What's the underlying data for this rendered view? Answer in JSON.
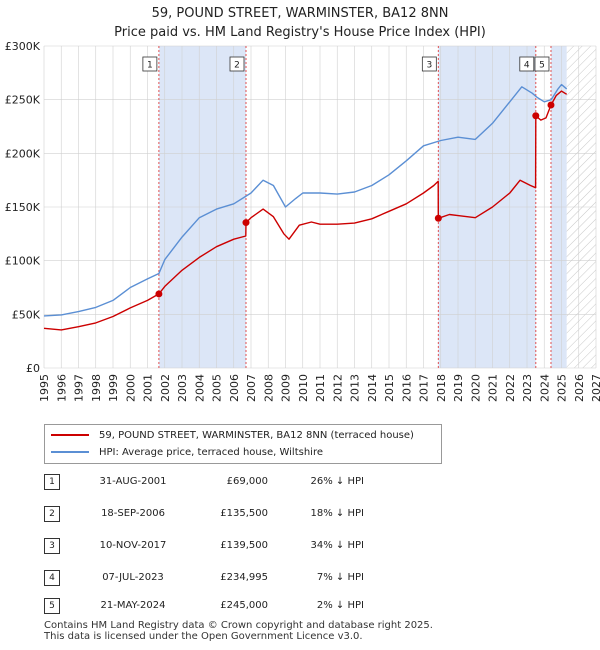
{
  "title": {
    "line1": "59, POUND STREET, WARMINSTER, BA12 8NN",
    "line2": "Price paid vs. HM Land Registry's House Price Index (HPI)"
  },
  "colors": {
    "property": "#cc0000",
    "hpi": "#5b8fd4",
    "shade": "#dce6f7",
    "grid": "#d0d0d0",
    "marker_line": "#e05050"
  },
  "chart_data": {
    "type": "line",
    "title": "Price paid vs. HM Land Registry's House Price Index (HPI)",
    "xlim": [
      1995,
      2027
    ],
    "ylim": [
      0,
      300000
    ],
    "x_ticks": [
      1995,
      1996,
      1997,
      1998,
      1999,
      2000,
      2001,
      2002,
      2003,
      2004,
      2005,
      2006,
      2007,
      2008,
      2009,
      2010,
      2011,
      2012,
      2013,
      2014,
      2015,
      2016,
      2017,
      2018,
      2019,
      2020,
      2021,
      2022,
      2023,
      2024,
      2025,
      2026,
      2027
    ],
    "y_ticks": [
      {
        "value": 0,
        "label": "£0"
      },
      {
        "value": 50000,
        "label": "£50K"
      },
      {
        "value": 100000,
        "label": "£100K"
      },
      {
        "value": 150000,
        "label": "£150K"
      },
      {
        "value": 200000,
        "label": "£200K"
      },
      {
        "value": 250000,
        "label": "£250K"
      },
      {
        "value": 300000,
        "label": "£300K"
      }
    ],
    "shaded_ranges": [
      [
        2001.66,
        2006.71
      ],
      [
        2017.86,
        2023.51
      ],
      [
        2024.39,
        2025.3
      ]
    ],
    "hatch_from": 2025.3,
    "series": [
      {
        "name": "59, POUND STREET, WARMINSTER, BA12 8NN (terraced house)",
        "color": "#cc0000",
        "points": [
          [
            1995,
            37000
          ],
          [
            1996,
            35500
          ],
          [
            1997,
            38500
          ],
          [
            1998,
            42000
          ],
          [
            1999,
            48000
          ],
          [
            2000,
            56000
          ],
          [
            2001,
            63000
          ],
          [
            2001.66,
            69000
          ],
          [
            2002,
            76000
          ],
          [
            2003,
            91000
          ],
          [
            2004,
            103000
          ],
          [
            2005,
            113000
          ],
          [
            2006,
            120000
          ],
          [
            2006.7,
            123000
          ],
          [
            2006.71,
            135500
          ],
          [
            2007,
            140000
          ],
          [
            2007.7,
            148000
          ],
          [
            2008.3,
            141000
          ],
          [
            2008.9,
            125000
          ],
          [
            2009.2,
            120000
          ],
          [
            2009.8,
            133000
          ],
          [
            2010.5,
            136000
          ],
          [
            2011,
            134000
          ],
          [
            2012,
            134000
          ],
          [
            2013,
            135000
          ],
          [
            2014,
            139000
          ],
          [
            2015,
            146000
          ],
          [
            2016,
            153000
          ],
          [
            2017,
            163000
          ],
          [
            2017.6,
            170000
          ],
          [
            2017.85,
            174000
          ],
          [
            2017.86,
            139500
          ],
          [
            2018.5,
            143000
          ],
          [
            2019,
            142000
          ],
          [
            2020,
            140000
          ],
          [
            2021,
            150000
          ],
          [
            2022,
            163000
          ],
          [
            2022.6,
            175000
          ],
          [
            2023.2,
            170000
          ],
          [
            2023.5,
            168000
          ],
          [
            2023.51,
            234995
          ],
          [
            2023.8,
            231000
          ],
          [
            2024.1,
            233000
          ],
          [
            2024.39,
            245000
          ],
          [
            2024.7,
            254000
          ],
          [
            2025,
            258000
          ],
          [
            2025.3,
            255000
          ]
        ]
      },
      {
        "name": "HPI: Average price, terraced house, Wiltshire",
        "color": "#5b8fd4",
        "points": [
          [
            1995,
            48500
          ],
          [
            1996,
            49500
          ],
          [
            1997,
            52500
          ],
          [
            1998,
            56500
          ],
          [
            1999,
            63000
          ],
          [
            2000,
            75000
          ],
          [
            2001,
            83000
          ],
          [
            2001.66,
            88000
          ],
          [
            2002,
            101000
          ],
          [
            2003,
            122000
          ],
          [
            2004,
            140000
          ],
          [
            2005,
            148000
          ],
          [
            2006,
            153000
          ],
          [
            2007,
            163000
          ],
          [
            2007.7,
            175000
          ],
          [
            2008.3,
            170000
          ],
          [
            2009,
            150000
          ],
          [
            2009.6,
            158000
          ],
          [
            2010,
            163000
          ],
          [
            2011,
            163000
          ],
          [
            2012,
            162000
          ],
          [
            2013,
            164000
          ],
          [
            2014,
            170000
          ],
          [
            2015,
            180000
          ],
          [
            2016,
            193000
          ],
          [
            2017,
            207000
          ],
          [
            2018,
            212000
          ],
          [
            2019,
            215000
          ],
          [
            2020,
            213000
          ],
          [
            2021,
            228000
          ],
          [
            2022,
            248000
          ],
          [
            2022.7,
            262000
          ],
          [
            2023.3,
            256000
          ],
          [
            2023.6,
            252000
          ],
          [
            2024,
            248000
          ],
          [
            2024.4,
            250000
          ],
          [
            2024.8,
            260000
          ],
          [
            2025,
            264000
          ],
          [
            2025.3,
            260000
          ]
        ]
      }
    ],
    "sales": [
      {
        "n": "1",
        "x": 2001.66,
        "price": 69000
      },
      {
        "n": "2",
        "x": 2006.71,
        "price": 135500
      },
      {
        "n": "3",
        "x": 2017.86,
        "price": 139500
      },
      {
        "n": "4",
        "x": 2023.51,
        "price": 234995
      },
      {
        "n": "5",
        "x": 2024.39,
        "price": 245000
      }
    ]
  },
  "legend": {
    "property_label": "59, POUND STREET, WARMINSTER, BA12 8NN (terraced house)",
    "hpi_label": "HPI: Average price, terraced house, Wiltshire"
  },
  "transactions": [
    {
      "n": "1",
      "date": "31-AUG-2001",
      "price": "£69,000",
      "hpi": "26% ↓ HPI"
    },
    {
      "n": "2",
      "date": "18-SEP-2006",
      "price": "£135,500",
      "hpi": "18% ↓ HPI"
    },
    {
      "n": "3",
      "date": "10-NOV-2017",
      "price": "£139,500",
      "hpi": "34% ↓ HPI"
    },
    {
      "n": "4",
      "date": "07-JUL-2023",
      "price": "£234,995",
      "hpi": "7% ↓ HPI"
    },
    {
      "n": "5",
      "date": "21-MAY-2024",
      "price": "£245,000",
      "hpi": "2% ↓ HPI"
    }
  ],
  "footer": {
    "line1": "Contains HM Land Registry data © Crown copyright and database right 2025.",
    "line2": "This data is licensed under the Open Government Licence v3.0."
  }
}
